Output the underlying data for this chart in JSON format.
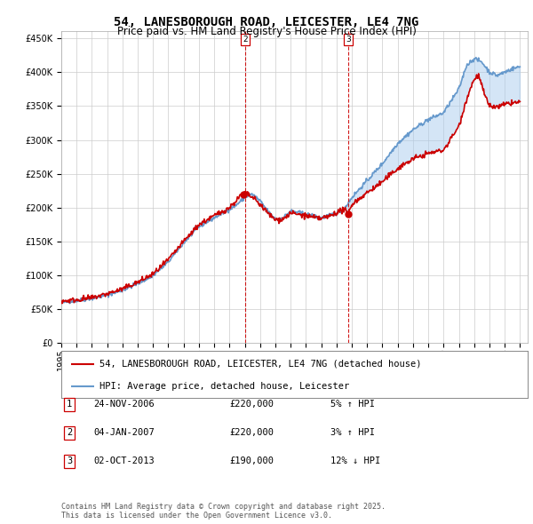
{
  "title": "54, LANESBOROUGH ROAD, LEICESTER, LE4 7NG",
  "subtitle": "Price paid vs. HM Land Registry's House Price Index (HPI)",
  "ylim": [
    0,
    460000
  ],
  "yticks": [
    0,
    50000,
    100000,
    150000,
    200000,
    250000,
    300000,
    350000,
    400000,
    450000
  ],
  "xlim_start": 1995.0,
  "xlim_end": 2025.5,
  "background_color": "#ffffff",
  "plot_bg_color": "#ffffff",
  "grid_color": "#cccccc",
  "sale_points": [
    {
      "label": "2",
      "date_num": 2007.03,
      "price": 220000
    },
    {
      "label": "3",
      "date_num": 2013.75,
      "price": 190000
    }
  ],
  "sale_dot_1": {
    "date_num": 2006.9,
    "price": 220000
  },
  "sale_dot_2": {
    "date_num": 2013.75,
    "price": 190000
  },
  "legend_entries": [
    {
      "label": "54, LANESBOROUGH ROAD, LEICESTER, LE4 7NG (detached house)",
      "color": "#cc0000",
      "lw": 1.2
    },
    {
      "label": "HPI: Average price, detached house, Leicester",
      "color": "#6699cc",
      "lw": 1.2
    }
  ],
  "table_rows": [
    {
      "num": "1",
      "date": "24-NOV-2006",
      "price": "£220,000",
      "hpi": "5% ↑ HPI"
    },
    {
      "num": "2",
      "date": "04-JAN-2007",
      "price": "£220,000",
      "hpi": "3% ↑ HPI"
    },
    {
      "num": "3",
      "date": "02-OCT-2013",
      "price": "£190,000",
      "hpi": "12% ↓ HPI"
    }
  ],
  "footnote": "Contains HM Land Registry data © Crown copyright and database right 2025.\nThis data is licensed under the Open Government Licence v3.0.",
  "title_fontsize": 10,
  "subtitle_fontsize": 8.5,
  "tick_fontsize": 7,
  "legend_fontsize": 7.5,
  "table_fontsize": 7.5,
  "footnote_fontsize": 6
}
